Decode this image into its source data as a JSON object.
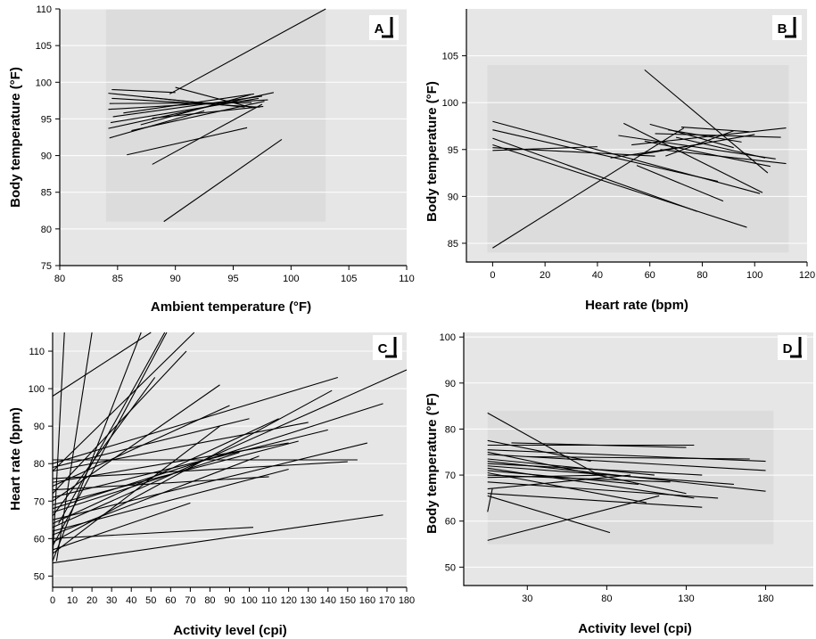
{
  "chart_data": [
    {
      "panel": "A",
      "type": "line",
      "xlabel": "Ambient temperature (°F)",
      "ylabel": "Body temperature (°F)",
      "xlim": [
        80,
        110
      ],
      "ylim": [
        75,
        110
      ],
      "xticks": [
        80,
        85,
        90,
        95,
        100,
        105,
        110
      ],
      "yticks": [
        75,
        80,
        85,
        90,
        95,
        100,
        105,
        110
      ],
      "segments": [
        [
          [
            89,
            81
          ],
          [
            99.2,
            92.2
          ]
        ],
        [
          [
            88,
            88.8
          ],
          [
            97.5,
            97
          ]
        ],
        [
          [
            85.8,
            90.1
          ],
          [
            96.2,
            93.8
          ]
        ],
        [
          [
            89.5,
            98.4
          ],
          [
            103,
            110
          ]
        ],
        [
          [
            84.2,
            93.7
          ],
          [
            98.5,
            98.6
          ]
        ],
        [
          [
            84.4,
            94.5
          ],
          [
            97.2,
            97.8
          ]
        ],
        [
          [
            84.6,
            95.3
          ],
          [
            97.5,
            98.1
          ]
        ],
        [
          [
            84.2,
            96.3
          ],
          [
            98,
            97.6
          ]
        ],
        [
          [
            84.3,
            97.1
          ],
          [
            96.6,
            97.2
          ]
        ],
        [
          [
            84.5,
            97.8
          ],
          [
            97.3,
            96.6
          ]
        ],
        [
          [
            84.2,
            98.5
          ],
          [
            93.5,
            97
          ]
        ],
        [
          [
            84.5,
            99
          ],
          [
            90,
            98.6
          ]
        ],
        [
          [
            86.2,
            93.4
          ],
          [
            97.7,
            97.4
          ]
        ],
        [
          [
            87,
            94.2
          ],
          [
            96.5,
            98.3
          ]
        ],
        [
          [
            88,
            95.1
          ],
          [
            97.6,
            96.7
          ]
        ],
        [
          [
            85.5,
            95.8
          ],
          [
            96.8,
            98.4
          ]
        ],
        [
          [
            84.3,
            92.4
          ],
          [
            92.5,
            96.1
          ]
        ],
        [
          [
            90,
            99.3
          ],
          [
            96.7,
            96.5
          ]
        ],
        [
          [
            87.2,
            98
          ],
          [
            96,
            96.6
          ]
        ]
      ]
    },
    {
      "panel": "B",
      "type": "line",
      "xlabel": "Heart rate (bpm)",
      "ylabel": "Body temperature (°F)",
      "xlim": [
        -10,
        120
      ],
      "ylim": [
        83,
        110
      ],
      "xticks": [
        0,
        20,
        40,
        60,
        80,
        100,
        120
      ],
      "yticks": [
        85,
        90,
        95,
        100,
        105
      ],
      "segments": [
        [
          [
            0,
            84.5
          ],
          [
            73,
            97.3
          ]
        ],
        [
          [
            58,
            103.5
          ],
          [
            105,
            92.5
          ]
        ],
        [
          [
            0,
            98
          ],
          [
            102,
            90.3
          ]
        ],
        [
          [
            0,
            97.1
          ],
          [
            86,
            91.6
          ]
        ],
        [
          [
            0,
            96.2
          ],
          [
            78,
            88.4
          ]
        ],
        [
          [
            0,
            95.5
          ],
          [
            97,
            86.7
          ]
        ],
        [
          [
            0,
            95.2
          ],
          [
            62,
            94.3
          ]
        ],
        [
          [
            0,
            94.9
          ],
          [
            40,
            95.3
          ]
        ],
        [
          [
            50,
            97.8
          ],
          [
            103,
            90.4
          ]
        ],
        [
          [
            48,
            96.5
          ],
          [
            108,
            94
          ]
        ],
        [
          [
            53,
            95.5
          ],
          [
            112,
            97.3
          ]
        ],
        [
          [
            55,
            94.4
          ],
          [
            100,
            96.6
          ]
        ],
        [
          [
            58,
            95.9
          ],
          [
            106,
            93.2
          ]
        ],
        [
          [
            60,
            97.7
          ],
          [
            92,
            95.2
          ]
        ],
        [
          [
            62,
            96.7
          ],
          [
            110,
            96.3
          ]
        ],
        [
          [
            64,
            95
          ],
          [
            112,
            93.5
          ]
        ],
        [
          [
            67,
            97.1
          ],
          [
            95,
            95.8
          ]
        ],
        [
          [
            70,
            96.3
          ],
          [
            104,
            94.1
          ]
        ],
        [
          [
            72,
            97.4
          ],
          [
            98,
            96.9
          ]
        ],
        [
          [
            55,
            93.3
          ],
          [
            88,
            89.5
          ]
        ],
        [
          [
            66,
            94.3
          ],
          [
            92,
            97
          ]
        ],
        [
          [
            45,
            94.1
          ],
          [
            80,
            95.6
          ]
        ]
      ]
    },
    {
      "panel": "C",
      "type": "line",
      "xlabel": "Activity level (cpi)",
      "ylabel": "Heart rate (bpm)",
      "xlim": [
        0,
        180
      ],
      "ylim": [
        47,
        115
      ],
      "xticks": [
        0,
        10,
        20,
        30,
        40,
        50,
        60,
        70,
        80,
        90,
        100,
        110,
        120,
        130,
        140,
        150,
        160,
        170,
        180
      ],
      "yticks": [
        50,
        60,
        70,
        80,
        90,
        100,
        110
      ],
      "segments": [
        [
          [
            0,
            55
          ],
          [
            6,
            115
          ]
        ],
        [
          [
            2,
            54
          ],
          [
            20,
            115
          ]
        ],
        [
          [
            0,
            98
          ],
          [
            50,
            115
          ]
        ],
        [
          [
            0,
            78
          ],
          [
            72,
            115
          ]
        ],
        [
          [
            0,
            53.5
          ],
          [
            168,
            66.3
          ]
        ],
        [
          [
            0,
            60
          ],
          [
            102,
            63
          ]
        ],
        [
          [
            0,
            57
          ],
          [
            70,
            69.5
          ]
        ],
        [
          [
            0,
            54
          ],
          [
            45,
            115
          ]
        ],
        [
          [
            0,
            58
          ],
          [
            58,
            115
          ]
        ],
        [
          [
            3,
            64
          ],
          [
            57,
            115
          ]
        ],
        [
          [
            0,
            66
          ],
          [
            52,
            103
          ]
        ],
        [
          [
            0,
            70
          ],
          [
            85,
            101
          ]
        ],
        [
          [
            0,
            72
          ],
          [
            68,
            110
          ]
        ],
        [
          [
            0,
            74
          ],
          [
            90,
            95.5
          ]
        ],
        [
          [
            0,
            75
          ],
          [
            120,
            85.5
          ]
        ],
        [
          [
            0,
            76
          ],
          [
            150,
            80.5
          ]
        ],
        [
          [
            0,
            80
          ],
          [
            145,
            103
          ]
        ],
        [
          [
            0,
            81
          ],
          [
            155,
            81
          ]
        ],
        [
          [
            0,
            63
          ],
          [
            180,
            105
          ]
        ],
        [
          [
            0,
            68
          ],
          [
            168,
            96
          ]
        ],
        [
          [
            0,
            59
          ],
          [
            142,
            99.5
          ]
        ],
        [
          [
            0,
            65
          ],
          [
            160,
            85.5
          ]
        ],
        [
          [
            0,
            71
          ],
          [
            140,
            89
          ]
        ],
        [
          [
            0,
            62
          ],
          [
            120,
            78.5
          ]
        ],
        [
          [
            0,
            73
          ],
          [
            110,
            76.5
          ]
        ],
        [
          [
            0,
            78
          ],
          [
            130,
            91
          ]
        ],
        [
          [
            0,
            79
          ],
          [
            100,
            92
          ]
        ],
        [
          [
            0,
            69
          ],
          [
            125,
            86
          ]
        ],
        [
          [
            0,
            67
          ],
          [
            95,
            83
          ]
        ],
        [
          [
            0,
            61
          ],
          [
            105,
            82
          ]
        ],
        [
          [
            0,
            64
          ],
          [
            115,
            92
          ]
        ],
        [
          [
            0,
            56
          ],
          [
            85,
            90
          ]
        ]
      ]
    },
    {
      "panel": "D",
      "type": "line",
      "xlabel": "Activity level (cpi)",
      "ylabel": "Body temperature (°F)",
      "xlim": [
        -10,
        210
      ],
      "ylim": [
        46,
        101
      ],
      "xticks": [
        30,
        80,
        130,
        180
      ],
      "yticks": [
        50,
        60,
        70,
        80,
        90,
        100
      ],
      "segments": [
        [
          [
            5,
            83.5
          ],
          [
            75,
            70
          ]
        ],
        [
          [
            5,
            65.5
          ],
          [
            82,
            57.5
          ]
        ],
        [
          [
            5,
            55.8
          ],
          [
            113,
            65.5
          ]
        ],
        [
          [
            5,
            62
          ],
          [
            8,
            67
          ]
        ],
        [
          [
            5,
            77.5
          ],
          [
            70,
            73
          ]
        ],
        [
          [
            5,
            76.5
          ],
          [
            135,
            76.5
          ]
        ],
        [
          [
            5,
            75.5
          ],
          [
            180,
            73
          ]
        ],
        [
          [
            5,
            75
          ],
          [
            130,
            66
          ]
        ],
        [
          [
            5,
            74.5
          ],
          [
            180,
            71
          ]
        ],
        [
          [
            5,
            73.5
          ],
          [
            110,
            70
          ]
        ],
        [
          [
            5,
            73
          ],
          [
            180,
            66.5
          ]
        ],
        [
          [
            5,
            72.5
          ],
          [
            140,
            70
          ]
        ],
        [
          [
            5,
            72
          ],
          [
            160,
            68
          ]
        ],
        [
          [
            5,
            71.5
          ],
          [
            135,
            65
          ]
        ],
        [
          [
            5,
            71
          ],
          [
            100,
            68
          ]
        ],
        [
          [
            5,
            70.5
          ],
          [
            105,
            64
          ]
        ],
        [
          [
            5,
            70
          ],
          [
            120,
            68.5
          ]
        ],
        [
          [
            5,
            69.5
          ],
          [
            80,
            70
          ]
        ],
        [
          [
            5,
            68.5
          ],
          [
            150,
            65
          ]
        ],
        [
          [
            5,
            67
          ],
          [
            95,
            70
          ]
        ],
        [
          [
            5,
            66
          ],
          [
            140,
            63
          ]
        ],
        [
          [
            20,
            77
          ],
          [
            130,
            76
          ]
        ],
        [
          [
            30,
            74
          ],
          [
            170,
            73.5
          ]
        ]
      ]
    }
  ]
}
